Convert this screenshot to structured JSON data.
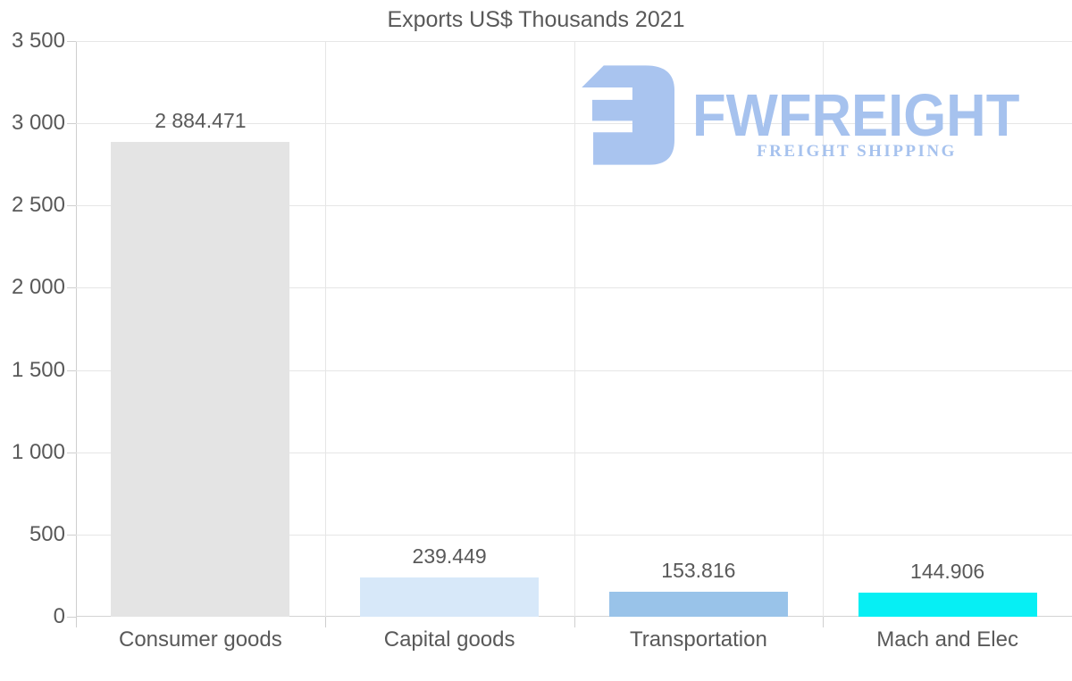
{
  "chart_data": {
    "type": "bar",
    "title": "Exports US$ Thousands 2021",
    "categories": [
      "Consumer goods",
      "Capital goods",
      "Transportation",
      "Mach and Elec"
    ],
    "values": [
      2884.471,
      239.449,
      153.816,
      144.906
    ],
    "value_labels": [
      "2 884.471",
      "239.449",
      "153.816",
      "144.906"
    ],
    "bar_colors": [
      "#e4e4e4",
      "#d7e8f9",
      "#99c3e9",
      "#06eff4"
    ],
    "xlabel": "",
    "ylabel": "",
    "ylim": [
      0,
      3500
    ],
    "ytick_interval": 500,
    "ytick_labels": [
      "0",
      "500",
      "1 000",
      "1 500",
      "2 000",
      "2 500",
      "3 000",
      "3 500"
    ],
    "grid": true,
    "legend_position": "none"
  },
  "logo": {
    "brand": "FWFREIGHT",
    "tagline": "FREIGHT SHIPPING",
    "color": "#a6c2ee"
  },
  "colors": {
    "text": "#595959",
    "gridline": "#e6e6e6",
    "axis": "#cfcfcf",
    "background": "#ffffff"
  }
}
